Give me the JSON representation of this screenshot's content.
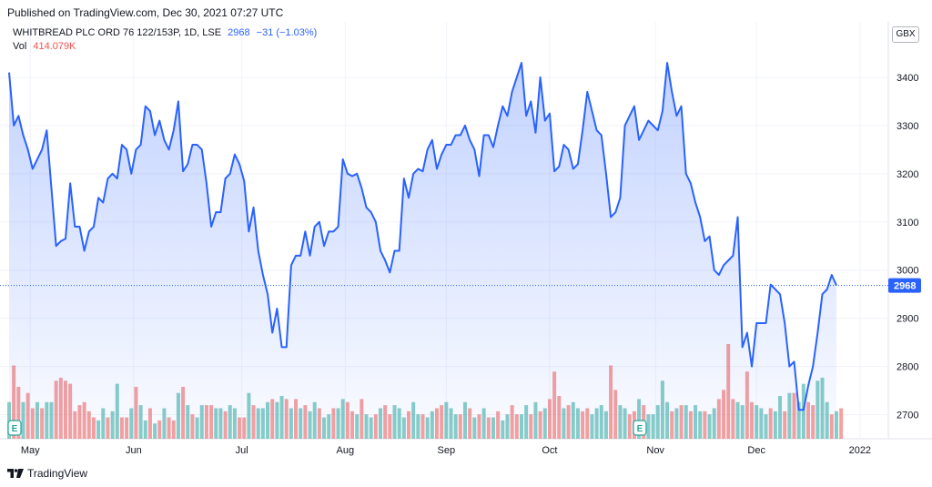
{
  "header": {
    "published": "Published on TradingView.com, Dec 30, 2021 07:27 UTC"
  },
  "legend": {
    "symbol": "WHITBREAD PLC ORD 76 122/153P, 1D, LSE",
    "last": "2968",
    "change": "−31 (−1.03%)",
    "vol_label": "Vol",
    "vol_value": "414.079K"
  },
  "currency": "GBX",
  "footer": {
    "brand": "TradingView"
  },
  "colors": {
    "line": "#2962ff",
    "area": "#2962ff",
    "vol_up": "#26a69a",
    "vol_down": "#ef5350",
    "grid": "#f0f3fa"
  },
  "chart_data": {
    "type": "area",
    "title": "WHITBREAD PLC ORD 76 122/153P, 1D, LSE",
    "ylim": [
      2650,
      3500
    ],
    "yticks": [
      2700,
      2800,
      2900,
      3000,
      3100,
      3200,
      3300,
      3400
    ],
    "ytick_labels": [
      "2700",
      "2800",
      "2900",
      "3000",
      "3100",
      "3200",
      "3300",
      "3400"
    ],
    "last_price": 2968,
    "last_price_label": "2968",
    "month_labels": [
      "May",
      "Jun",
      "Jul",
      "Aug",
      "Sep",
      "Oct",
      "Nov",
      "Dec",
      "2022"
    ],
    "month_label_index": [
      4.5,
      26.5,
      49.5,
      71.5,
      93,
      115,
      137.5,
      159,
      181
    ],
    "earnings_markers": [
      0,
      133
    ],
    "grid": true,
    "price": [
      3410,
      3300,
      3320,
      3280,
      3250,
      3210,
      3230,
      3250,
      3290,
      3170,
      3050,
      3060,
      3065,
      3180,
      3090,
      3090,
      3040,
      3080,
      3090,
      3150,
      3140,
      3190,
      3200,
      3190,
      3260,
      3250,
      3200,
      3250,
      3260,
      3340,
      3330,
      3280,
      3310,
      3270,
      3250,
      3290,
      3350,
      3205,
      3220,
      3260,
      3260,
      3250,
      3180,
      3090,
      3120,
      3120,
      3190,
      3200,
      3240,
      3220,
      3185,
      3080,
      3130,
      3040,
      2990,
      2950,
      2870,
      2920,
      2840,
      2840,
      3010,
      3030,
      3030,
      3080,
      3030,
      3090,
      3100,
      3050,
      3080,
      3080,
      3090,
      3230,
      3200,
      3195,
      3200,
      3170,
      3130,
      3120,
      3100,
      3040,
      3020,
      2995,
      3040,
      3040,
      3190,
      3150,
      3200,
      3210,
      3205,
      3250,
      3270,
      3210,
      3240,
      3260,
      3260,
      3280,
      3280,
      3300,
      3270,
      3250,
      3195,
      3280,
      3280,
      3255,
      3300,
      3340,
      3320,
      3370,
      3400,
      3430,
      3320,
      3350,
      3285,
      3400,
      3310,
      3325,
      3205,
      3215,
      3260,
      3250,
      3210,
      3220,
      3290,
      3370,
      3330,
      3290,
      3280,
      3200,
      3110,
      3120,
      3150,
      3300,
      3320,
      3340,
      3270,
      3290,
      3310,
      3300,
      3290,
      3330,
      3430,
      3370,
      3320,
      3340,
      3200,
      3180,
      3140,
      3110,
      3060,
      3070,
      3000,
      2990,
      3010,
      3020,
      3030,
      3110,
      2840,
      2870,
      2800,
      2890,
      2890,
      2890,
      2970,
      2960,
      2950,
      2890,
      2800,
      2810,
      2710,
      2710,
      2760,
      2800,
      2870,
      2950,
      2960,
      2990,
      2968
    ],
    "volume": [
      [
        1,
        12
      ],
      [
        0,
        24
      ],
      [
        0,
        17
      ],
      [
        1,
        12
      ],
      [
        0,
        15
      ],
      [
        0,
        10
      ],
      [
        1,
        12
      ],
      [
        0,
        10
      ],
      [
        1,
        12
      ],
      [
        1,
        12
      ],
      [
        0,
        19
      ],
      [
        0,
        20
      ],
      [
        0,
        19
      ],
      [
        0,
        18
      ],
      [
        0,
        9
      ],
      [
        0,
        11
      ],
      [
        0,
        12
      ],
      [
        0,
        9
      ],
      [
        0,
        7
      ],
      [
        1,
        6
      ],
      [
        1,
        10
      ],
      [
        0,
        7
      ],
      [
        1,
        9
      ],
      [
        1,
        18
      ],
      [
        0,
        7
      ],
      [
        0,
        7
      ],
      [
        1,
        10
      ],
      [
        0,
        17
      ],
      [
        1,
        11
      ],
      [
        1,
        6
      ],
      [
        0,
        10
      ],
      [
        1,
        5
      ],
      [
        0,
        6
      ],
      [
        1,
        10
      ],
      [
        0,
        7
      ],
      [
        0,
        6
      ],
      [
        1,
        15
      ],
      [
        0,
        17
      ],
      [
        1,
        11
      ],
      [
        0,
        8
      ],
      [
        1,
        7
      ],
      [
        1,
        11
      ],
      [
        0,
        11
      ],
      [
        0,
        11
      ],
      [
        1,
        10
      ],
      [
        1,
        10
      ],
      [
        0,
        9
      ],
      [
        1,
        11
      ],
      [
        1,
        10
      ],
      [
        0,
        7
      ],
      [
        0,
        7
      ],
      [
        1,
        15
      ],
      [
        0,
        11
      ],
      [
        1,
        10
      ],
      [
        1,
        10
      ],
      [
        1,
        12
      ],
      [
        0,
        13
      ],
      [
        1,
        12
      ],
      [
        1,
        14
      ],
      [
        0,
        13
      ],
      [
        1,
        10
      ],
      [
        0,
        13
      ],
      [
        1,
        10
      ],
      [
        0,
        11
      ],
      [
        1,
        9
      ],
      [
        1,
        12
      ],
      [
        0,
        10
      ],
      [
        1,
        7
      ],
      [
        1,
        8
      ],
      [
        0,
        10
      ],
      [
        1,
        10
      ],
      [
        1,
        13
      ],
      [
        0,
        12
      ],
      [
        0,
        9
      ],
      [
        1,
        8
      ],
      [
        0,
        13
      ],
      [
        1,
        8
      ],
      [
        1,
        7
      ],
      [
        0,
        8
      ],
      [
        1,
        10
      ],
      [
        0,
        11
      ],
      [
        0,
        8
      ],
      [
        1,
        11
      ],
      [
        1,
        10
      ],
      [
        1,
        7
      ],
      [
        0,
        9
      ],
      [
        1,
        12
      ],
      [
        1,
        8
      ],
      [
        0,
        8
      ],
      [
        1,
        7
      ],
      [
        1,
        9
      ],
      [
        0,
        10
      ],
      [
        0,
        11
      ],
      [
        1,
        12
      ],
      [
        1,
        10
      ],
      [
        1,
        8
      ],
      [
        0,
        8
      ],
      [
        1,
        12
      ],
      [
        0,
        10
      ],
      [
        1,
        7
      ],
      [
        0,
        8
      ],
      [
        1,
        10
      ],
      [
        0,
        7
      ],
      [
        1,
        7
      ],
      [
        0,
        9
      ],
      [
        1,
        6
      ],
      [
        1,
        8
      ],
      [
        0,
        11
      ],
      [
        0,
        8
      ],
      [
        1,
        8
      ],
      [
        1,
        11
      ],
      [
        0,
        8
      ],
      [
        1,
        12
      ],
      [
        0,
        9
      ],
      [
        1,
        10
      ],
      [
        0,
        13
      ],
      [
        0,
        22
      ],
      [
        0,
        14
      ],
      [
        1,
        10
      ],
      [
        0,
        11
      ],
      [
        1,
        12
      ],
      [
        1,
        10
      ],
      [
        0,
        9
      ],
      [
        0,
        10
      ],
      [
        1,
        8
      ],
      [
        1,
        10
      ],
      [
        1,
        11
      ],
      [
        1,
        9
      ],
      [
        0,
        24
      ],
      [
        0,
        16
      ],
      [
        1,
        11
      ],
      [
        1,
        10
      ],
      [
        0,
        8
      ],
      [
        0,
        9
      ],
      [
        1,
        13
      ],
      [
        0,
        11
      ],
      [
        1,
        8
      ],
      [
        1,
        8
      ],
      [
        1,
        11
      ],
      [
        1,
        19
      ],
      [
        1,
        12
      ],
      [
        0,
        9
      ],
      [
        1,
        10
      ],
      [
        0,
        11
      ],
      [
        1,
        11
      ],
      [
        0,
        9
      ],
      [
        1,
        11
      ],
      [
        1,
        9
      ],
      [
        0,
        9
      ],
      [
        1,
        8
      ],
      [
        1,
        10
      ],
      [
        0,
        13
      ],
      [
        0,
        16
      ],
      [
        0,
        31
      ],
      [
        0,
        13
      ],
      [
        1,
        12
      ],
      [
        1,
        11
      ],
      [
        0,
        22
      ],
      [
        0,
        12
      ],
      [
        1,
        11
      ],
      [
        1,
        10
      ],
      [
        1,
        8
      ],
      [
        0,
        10
      ],
      [
        1,
        9
      ],
      [
        1,
        14
      ],
      [
        0,
        9
      ],
      [
        1,
        15
      ],
      [
        0,
        15
      ],
      [
        1,
        12
      ],
      [
        1,
        18
      ],
      [
        0,
        12
      ],
      [
        0,
        11
      ],
      [
        1,
        19
      ],
      [
        1,
        20
      ],
      [
        1,
        12
      ],
      [
        0,
        8
      ],
      [
        1,
        9
      ],
      [
        0,
        10
      ]
    ]
  }
}
